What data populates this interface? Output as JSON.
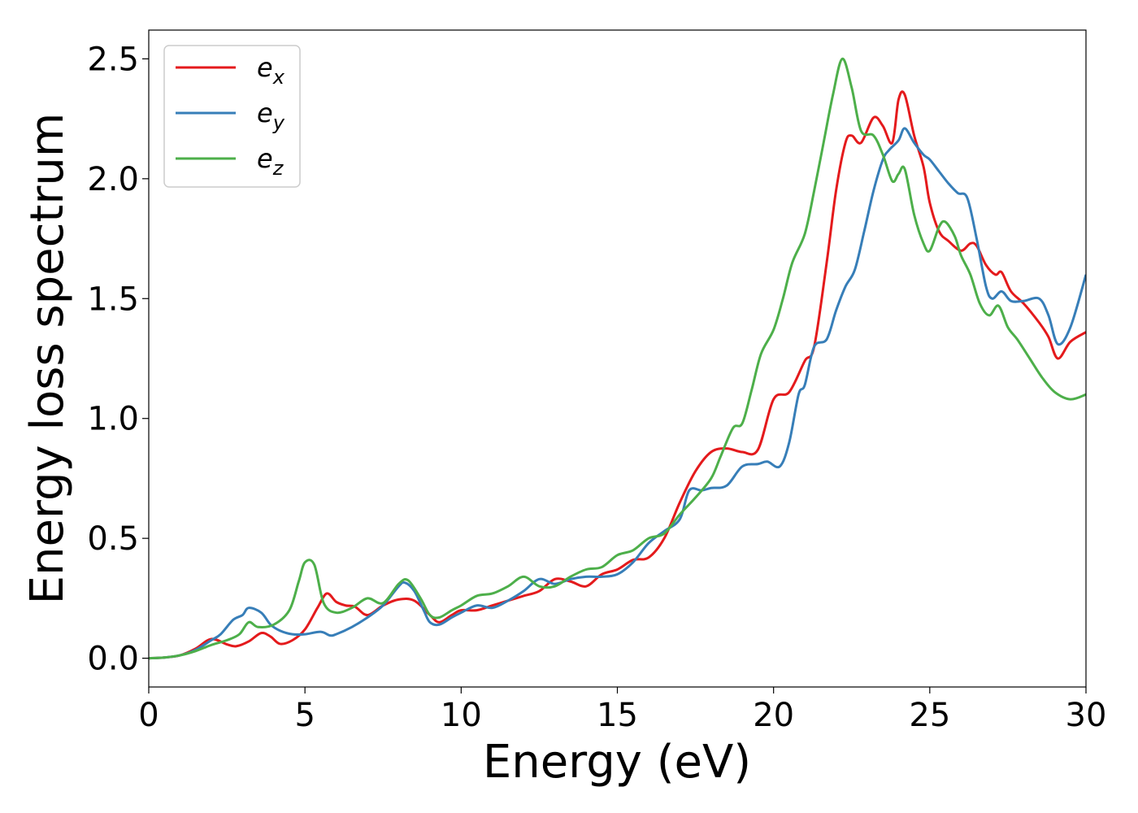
{
  "chart_data": {
    "type": "line",
    "title": "",
    "xlabel": "Energy (eV)",
    "ylabel": "Energy loss spectrum",
    "xlim": [
      0,
      30
    ],
    "ylim": [
      -0.12,
      2.62
    ],
    "xticks": [
      {
        "value": 0,
        "label": "0"
      },
      {
        "value": 5,
        "label": "5"
      },
      {
        "value": 10,
        "label": "10"
      },
      {
        "value": 15,
        "label": "15"
      },
      {
        "value": 20,
        "label": "20"
      },
      {
        "value": 25,
        "label": "25"
      },
      {
        "value": 30,
        "label": "30"
      }
    ],
    "yticks": [
      {
        "value": 0.0,
        "label": "0.0"
      },
      {
        "value": 0.5,
        "label": "0.5"
      },
      {
        "value": 1.0,
        "label": "1.0"
      },
      {
        "value": 1.5,
        "label": "1.5"
      },
      {
        "value": 2.0,
        "label": "2.0"
      },
      {
        "value": 2.5,
        "label": "2.5"
      }
    ],
    "grid": false,
    "legend_position": "top-left",
    "series": [
      {
        "name": "e",
        "subscript": "x",
        "color": "#e41a1c",
        "points": [
          [
            0,
            0
          ],
          [
            0.5,
            0.003
          ],
          [
            1,
            0.012
          ],
          [
            1.5,
            0.04
          ],
          [
            2,
            0.08
          ],
          [
            2.5,
            0.058
          ],
          [
            2.8,
            0.05
          ],
          [
            3.2,
            0.07
          ],
          [
            3.6,
            0.105
          ],
          [
            3.9,
            0.09
          ],
          [
            4.2,
            0.06
          ],
          [
            4.6,
            0.075
          ],
          [
            5,
            0.12
          ],
          [
            5.4,
            0.21
          ],
          [
            5.7,
            0.27
          ],
          [
            6,
            0.235
          ],
          [
            6.3,
            0.22
          ],
          [
            6.6,
            0.215
          ],
          [
            7,
            0.18
          ],
          [
            7.5,
            0.22
          ],
          [
            8,
            0.245
          ],
          [
            8.5,
            0.24
          ],
          [
            9,
            0.18
          ],
          [
            9.3,
            0.15
          ],
          [
            9.7,
            0.18
          ],
          [
            10,
            0.2
          ],
          [
            10.5,
            0.2
          ],
          [
            11,
            0.22
          ],
          [
            11.5,
            0.24
          ],
          [
            12,
            0.26
          ],
          [
            12.5,
            0.28
          ],
          [
            13,
            0.33
          ],
          [
            13.5,
            0.32
          ],
          [
            14,
            0.3
          ],
          [
            14.5,
            0.35
          ],
          [
            15,
            0.37
          ],
          [
            15.5,
            0.41
          ],
          [
            16,
            0.42
          ],
          [
            16.5,
            0.5
          ],
          [
            17,
            0.65
          ],
          [
            17.5,
            0.78
          ],
          [
            18,
            0.86
          ],
          [
            18.5,
            0.875
          ],
          [
            19,
            0.86
          ],
          [
            19.5,
            0.87
          ],
          [
            20,
            1.08
          ],
          [
            20.5,
            1.11
          ],
          [
            21,
            1.24
          ],
          [
            21.3,
            1.3
          ],
          [
            21.7,
            1.65
          ],
          [
            22,
            1.95
          ],
          [
            22.3,
            2.15
          ],
          [
            22.5,
            2.18
          ],
          [
            22.8,
            2.15
          ],
          [
            23.2,
            2.255
          ],
          [
            23.5,
            2.22
          ],
          [
            23.8,
            2.15
          ],
          [
            24,
            2.33
          ],
          [
            24.2,
            2.35
          ],
          [
            24.5,
            2.18
          ],
          [
            24.8,
            2.05
          ],
          [
            25,
            1.9
          ],
          [
            25.3,
            1.78
          ],
          [
            25.6,
            1.74
          ],
          [
            26,
            1.7
          ],
          [
            26.3,
            1.73
          ],
          [
            26.5,
            1.72
          ],
          [
            26.8,
            1.64
          ],
          [
            27.1,
            1.6
          ],
          [
            27.3,
            1.61
          ],
          [
            27.6,
            1.53
          ],
          [
            28,
            1.48
          ],
          [
            28.5,
            1.4
          ],
          [
            28.8,
            1.34
          ],
          [
            29.1,
            1.25
          ],
          [
            29.5,
            1.32
          ],
          [
            30,
            1.36
          ]
        ]
      },
      {
        "name": "e",
        "subscript": "y",
        "color": "#377eb8",
        "points": [
          [
            0,
            0
          ],
          [
            0.5,
            0.003
          ],
          [
            1,
            0.012
          ],
          [
            1.5,
            0.035
          ],
          [
            2,
            0.075
          ],
          [
            2.3,
            0.1
          ],
          [
            2.7,
            0.16
          ],
          [
            3,
            0.18
          ],
          [
            3.2,
            0.21
          ],
          [
            3.6,
            0.19
          ],
          [
            3.9,
            0.14
          ],
          [
            4.2,
            0.115
          ],
          [
            4.6,
            0.1
          ],
          [
            5,
            0.1
          ],
          [
            5.5,
            0.11
          ],
          [
            5.8,
            0.095
          ],
          [
            6,
            0.1
          ],
          [
            6.5,
            0.13
          ],
          [
            7,
            0.17
          ],
          [
            7.5,
            0.22
          ],
          [
            8,
            0.3
          ],
          [
            8.2,
            0.315
          ],
          [
            8.5,
            0.28
          ],
          [
            8.8,
            0.2
          ],
          [
            9,
            0.15
          ],
          [
            9.3,
            0.14
          ],
          [
            9.7,
            0.17
          ],
          [
            10,
            0.19
          ],
          [
            10.5,
            0.22
          ],
          [
            11,
            0.21
          ],
          [
            11.5,
            0.24
          ],
          [
            12,
            0.28
          ],
          [
            12.5,
            0.33
          ],
          [
            13,
            0.31
          ],
          [
            13.5,
            0.33
          ],
          [
            14,
            0.34
          ],
          [
            14.5,
            0.34
          ],
          [
            15,
            0.35
          ],
          [
            15.5,
            0.4
          ],
          [
            16,
            0.48
          ],
          [
            16.5,
            0.53
          ],
          [
            17,
            0.58
          ],
          [
            17.3,
            0.7
          ],
          [
            17.7,
            0.7
          ],
          [
            18,
            0.71
          ],
          [
            18.5,
            0.72
          ],
          [
            19,
            0.8
          ],
          [
            19.5,
            0.81
          ],
          [
            19.8,
            0.82
          ],
          [
            20.2,
            0.8
          ],
          [
            20.5,
            0.9
          ],
          [
            20.8,
            1.1
          ],
          [
            21,
            1.14
          ],
          [
            21.3,
            1.3
          ],
          [
            21.7,
            1.33
          ],
          [
            22,
            1.45
          ],
          [
            22.3,
            1.55
          ],
          [
            22.6,
            1.62
          ],
          [
            22.9,
            1.78
          ],
          [
            23.2,
            1.95
          ],
          [
            23.5,
            2.08
          ],
          [
            23.7,
            2.12
          ],
          [
            24,
            2.16
          ],
          [
            24.2,
            2.21
          ],
          [
            24.5,
            2.15
          ],
          [
            24.8,
            2.1
          ],
          [
            25,
            2.08
          ],
          [
            25.3,
            2.03
          ],
          [
            25.6,
            1.98
          ],
          [
            25.9,
            1.94
          ],
          [
            26.2,
            1.92
          ],
          [
            26.5,
            1.75
          ],
          [
            26.8,
            1.55
          ],
          [
            27,
            1.5
          ],
          [
            27.3,
            1.53
          ],
          [
            27.6,
            1.49
          ],
          [
            28,
            1.49
          ],
          [
            28.5,
            1.5
          ],
          [
            28.8,
            1.43
          ],
          [
            29.1,
            1.31
          ],
          [
            29.5,
            1.38
          ],
          [
            30,
            1.6
          ]
        ]
      },
      {
        "name": "e",
        "subscript": "z",
        "color": "#4daf4a",
        "points": [
          [
            0,
            0
          ],
          [
            0.5,
            0.003
          ],
          [
            1,
            0.012
          ],
          [
            1.5,
            0.03
          ],
          [
            2,
            0.055
          ],
          [
            2.5,
            0.075
          ],
          [
            2.9,
            0.1
          ],
          [
            3.2,
            0.15
          ],
          [
            3.5,
            0.13
          ],
          [
            4,
            0.14
          ],
          [
            4.5,
            0.2
          ],
          [
            4.8,
            0.32
          ],
          [
            5,
            0.4
          ],
          [
            5.3,
            0.39
          ],
          [
            5.6,
            0.23
          ],
          [
            6,
            0.19
          ],
          [
            6.5,
            0.21
          ],
          [
            7,
            0.25
          ],
          [
            7.5,
            0.23
          ],
          [
            8,
            0.31
          ],
          [
            8.3,
            0.325
          ],
          [
            8.7,
            0.25
          ],
          [
            9,
            0.18
          ],
          [
            9.3,
            0.17
          ],
          [
            9.7,
            0.2
          ],
          [
            10,
            0.22
          ],
          [
            10.5,
            0.26
          ],
          [
            11,
            0.27
          ],
          [
            11.5,
            0.3
          ],
          [
            12,
            0.34
          ],
          [
            12.5,
            0.3
          ],
          [
            13,
            0.3
          ],
          [
            13.5,
            0.34
          ],
          [
            14,
            0.37
          ],
          [
            14.5,
            0.38
          ],
          [
            15,
            0.43
          ],
          [
            15.5,
            0.45
          ],
          [
            16,
            0.5
          ],
          [
            16.5,
            0.52
          ],
          [
            17,
            0.6
          ],
          [
            17.5,
            0.67
          ],
          [
            18,
            0.75
          ],
          [
            18.3,
            0.84
          ],
          [
            18.7,
            0.96
          ],
          [
            19,
            0.98
          ],
          [
            19.3,
            1.12
          ],
          [
            19.6,
            1.27
          ],
          [
            20,
            1.37
          ],
          [
            20.3,
            1.5
          ],
          [
            20.6,
            1.65
          ],
          [
            21,
            1.77
          ],
          [
            21.3,
            1.95
          ],
          [
            21.6,
            2.15
          ],
          [
            21.9,
            2.35
          ],
          [
            22.2,
            2.5
          ],
          [
            22.5,
            2.38
          ],
          [
            22.8,
            2.2
          ],
          [
            23.2,
            2.18
          ],
          [
            23.5,
            2.1
          ],
          [
            23.8,
            1.99
          ],
          [
            24,
            2.02
          ],
          [
            24.2,
            2.04
          ],
          [
            24.5,
            1.85
          ],
          [
            24.8,
            1.73
          ],
          [
            25,
            1.7
          ],
          [
            25.3,
            1.8
          ],
          [
            25.5,
            1.82
          ],
          [
            25.8,
            1.76
          ],
          [
            26,
            1.68
          ],
          [
            26.3,
            1.6
          ],
          [
            26.6,
            1.48
          ],
          [
            26.9,
            1.43
          ],
          [
            27.2,
            1.47
          ],
          [
            27.5,
            1.38
          ],
          [
            27.8,
            1.33
          ],
          [
            28.2,
            1.25
          ],
          [
            28.6,
            1.17
          ],
          [
            29,
            1.11
          ],
          [
            29.5,
            1.08
          ],
          [
            30,
            1.1
          ]
        ]
      }
    ]
  }
}
